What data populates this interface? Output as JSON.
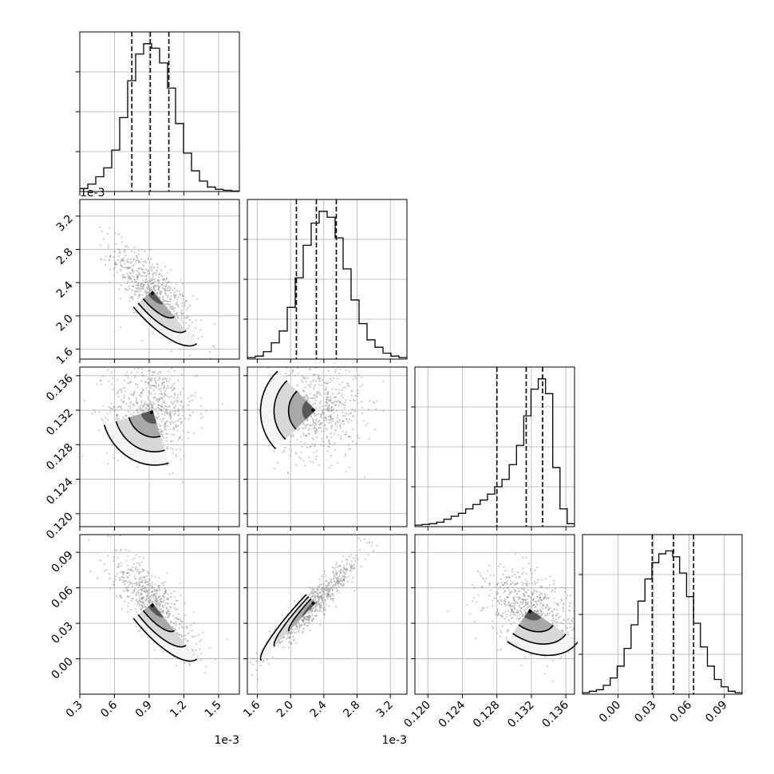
{
  "chart_data": {
    "type": "corner",
    "grid": true,
    "parameters": [
      {
        "range": [
          0.3,
          1.68
        ],
        "ticks": [
          0.3,
          0.6,
          0.9,
          1.2,
          1.5
        ],
        "tick_labels": [
          "0.3",
          "0.6",
          "0.9",
          "1.2",
          "1.5"
        ],
        "offset_label": "1e-3",
        "quantiles": [
          0.75,
          0.91,
          1.07
        ]
      },
      {
        "range": [
          1.48,
          3.4
        ],
        "ticks": [
          1.6,
          2.0,
          2.4,
          2.8,
          3.2
        ],
        "tick_labels": [
          "1.6",
          "2.0",
          "2.4",
          "2.8",
          "3.2"
        ],
        "offset_label": "1e-3",
        "quantiles": [
          2.07,
          2.31,
          2.55
        ]
      },
      {
        "range": [
          0.1185,
          0.137
        ],
        "ticks": [
          0.12,
          0.124,
          0.128,
          0.132,
          0.136
        ],
        "tick_labels": [
          "0.120",
          "0.124",
          "0.128",
          "0.132",
          "0.136"
        ],
        "offset_label": "",
        "quantiles": [
          0.128,
          0.1314,
          0.1333
        ]
      },
      {
        "range": [
          -0.03,
          0.105
        ],
        "ticks": [
          0.0,
          0.03,
          0.06,
          0.09
        ],
        "tick_labels": [
          "0.00",
          "0.03",
          "0.06",
          "0.09"
        ],
        "offset_label": "",
        "quantiles": [
          0.029,
          0.047,
          0.064
        ]
      }
    ],
    "histograms": [
      [
        0.02,
        0.05,
        0.1,
        0.16,
        0.28,
        0.5,
        0.75,
        0.93,
        1.0,
        0.97,
        0.87,
        0.7,
        0.46,
        0.26,
        0.14,
        0.07,
        0.03,
        0.015,
        0.008,
        0.003
      ],
      [
        0.01,
        0.02,
        0.05,
        0.11,
        0.19,
        0.35,
        0.55,
        0.77,
        0.92,
        1.0,
        0.96,
        0.82,
        0.61,
        0.4,
        0.24,
        0.13,
        0.08,
        0.04,
        0.02,
        0.01
      ],
      [
        0.01,
        0.015,
        0.02,
        0.03,
        0.05,
        0.07,
        0.09,
        0.12,
        0.15,
        0.18,
        0.22,
        0.27,
        0.32,
        0.42,
        0.55,
        0.75,
        0.93,
        1.0,
        0.9,
        0.4,
        0.12,
        0.02
      ],
      [
        0.01,
        0.02,
        0.03,
        0.06,
        0.11,
        0.19,
        0.31,
        0.47,
        0.63,
        0.78,
        0.89,
        0.95,
        0.97,
        0.93,
        0.82,
        0.66,
        0.48,
        0.32,
        0.19,
        0.1,
        0.05,
        0.02,
        0.01
      ]
    ],
    "pairs": [
      {
        "row": 1,
        "col": 0,
        "center": [
          0.93,
          2.3
        ],
        "sd": [
          0.17,
          0.27
        ],
        "rho": -0.76
      },
      {
        "row": 2,
        "col": 0,
        "center": [
          0.93,
          0.132
        ],
        "sd": [
          0.18,
          0.0026
        ],
        "rho": -0.05
      },
      {
        "row": 2,
        "col": 1,
        "center": [
          2.3,
          0.132
        ],
        "sd": [
          0.27,
          0.0026
        ],
        "rho": 0.02
      },
      {
        "row": 3,
        "col": 0,
        "center": [
          0.93,
          0.047
        ],
        "sd": [
          0.17,
          0.02
        ],
        "rho": -0.78
      },
      {
        "row": 3,
        "col": 1,
        "center": [
          2.3,
          0.047
        ],
        "sd": [
          0.27,
          0.02
        ],
        "rho": 0.95
      },
      {
        "row": 3,
        "col": 2,
        "center": [
          0.1318,
          0.042
        ],
        "sd": [
          0.0025,
          0.016
        ],
        "rho": -0.35
      }
    ]
  }
}
